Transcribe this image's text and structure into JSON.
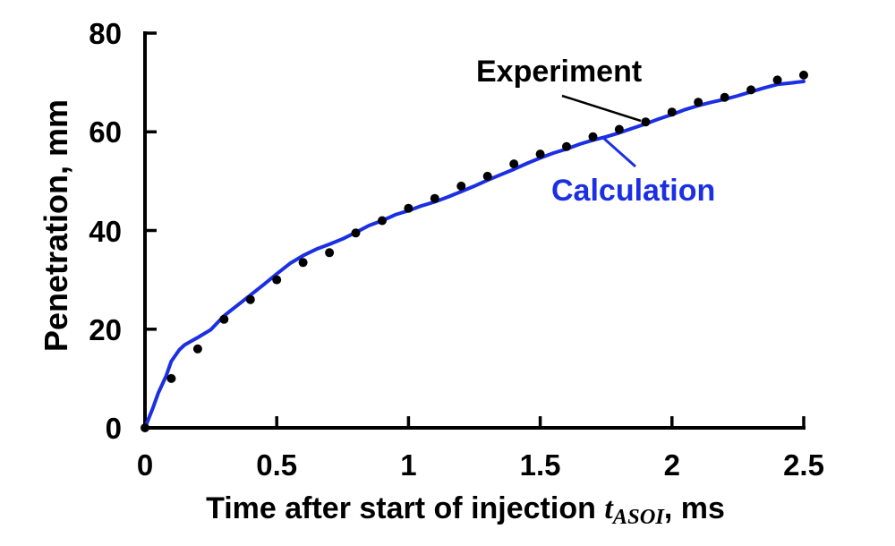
{
  "figure": {
    "background": "#ffffff",
    "annotations": {
      "experiment": "Experiment",
      "calculation": "Calculation"
    },
    "colors": {
      "axis": "#000000",
      "experiment": "#000000",
      "calculation": "#1b2fe3"
    }
  },
  "chart_data": {
    "type": "scatter",
    "title": "",
    "xlabel_prefix": "Time after start of injection ",
    "xlabel_symbol": "t",
    "xlabel_subscript": "ASOI",
    "xlabel_suffix": ", ms",
    "ylabel": "Penetration, mm",
    "xlim": [
      0,
      2.5
    ],
    "ylim": [
      0,
      80
    ],
    "grid": false,
    "legend_position": "inline-annotations",
    "x_ticks": {
      "values": [
        0,
        0.5,
        1,
        1.5,
        2,
        2.5
      ],
      "labels": [
        "0",
        "0.5",
        "1",
        "1.5",
        "2",
        "2.5"
      ]
    },
    "y_ticks": {
      "values": [
        0,
        20,
        40,
        60,
        80
      ],
      "labels": [
        "0",
        "20",
        "40",
        "60",
        "80"
      ]
    },
    "series": [
      {
        "name": "Experiment",
        "style": "scatter",
        "color": "#000000",
        "x": [
          0,
          0.1,
          0.2,
          0.3,
          0.4,
          0.5,
          0.6,
          0.7,
          0.8,
          0.9,
          1.0,
          1.1,
          1.2,
          1.3,
          1.4,
          1.5,
          1.6,
          1.7,
          1.8,
          1.9,
          2.0,
          2.1,
          2.2,
          2.3,
          2.4,
          2.5
        ],
        "y": [
          0,
          10,
          16,
          22,
          26,
          30,
          33.5,
          35.5,
          39.5,
          42,
          44.5,
          46.5,
          49,
          51,
          53.5,
          55.5,
          57,
          59,
          60.5,
          62,
          64,
          66,
          67,
          68.5,
          70.5,
          71.5
        ]
      },
      {
        "name": "Calculation",
        "style": "line",
        "color": "#1b2fe3",
        "x": [
          0,
          0.03,
          0.05,
          0.08,
          0.1,
          0.13,
          0.15,
          0.18,
          0.2,
          0.25,
          0.3,
          0.35,
          0.4,
          0.45,
          0.5,
          0.55,
          0.6,
          0.65,
          0.7,
          0.75,
          0.8,
          0.85,
          0.9,
          0.95,
          1.0,
          1.05,
          1.1,
          1.15,
          1.2,
          1.25,
          1.3,
          1.35,
          1.4,
          1.45,
          1.5,
          1.55,
          1.6,
          1.65,
          1.7,
          1.75,
          1.8,
          1.85,
          1.9,
          1.95,
          2.0,
          2.05,
          2.1,
          2.15,
          2.2,
          2.25,
          2.3,
          2.35,
          2.4,
          2.45,
          2.5
        ],
        "y": [
          0,
          4,
          7,
          10.5,
          13.5,
          15.8,
          16.8,
          17.7,
          18.3,
          19.9,
          22.7,
          24.8,
          26.9,
          29,
          31.2,
          33.3,
          34.9,
          36.2,
          37.2,
          38.3,
          39.6,
          41,
          42,
          43.2,
          44,
          45,
          45.8,
          46.8,
          47.9,
          49,
          50.2,
          51.3,
          52.4,
          53.6,
          54.7,
          55.7,
          56.5,
          57.5,
          58.3,
          59,
          59.8,
          60.7,
          61.6,
          62.6,
          63.5,
          64.5,
          65.3,
          66,
          66.6,
          67.3,
          68.1,
          68.9,
          69.6,
          69.9,
          70.2
        ]
      }
    ]
  }
}
